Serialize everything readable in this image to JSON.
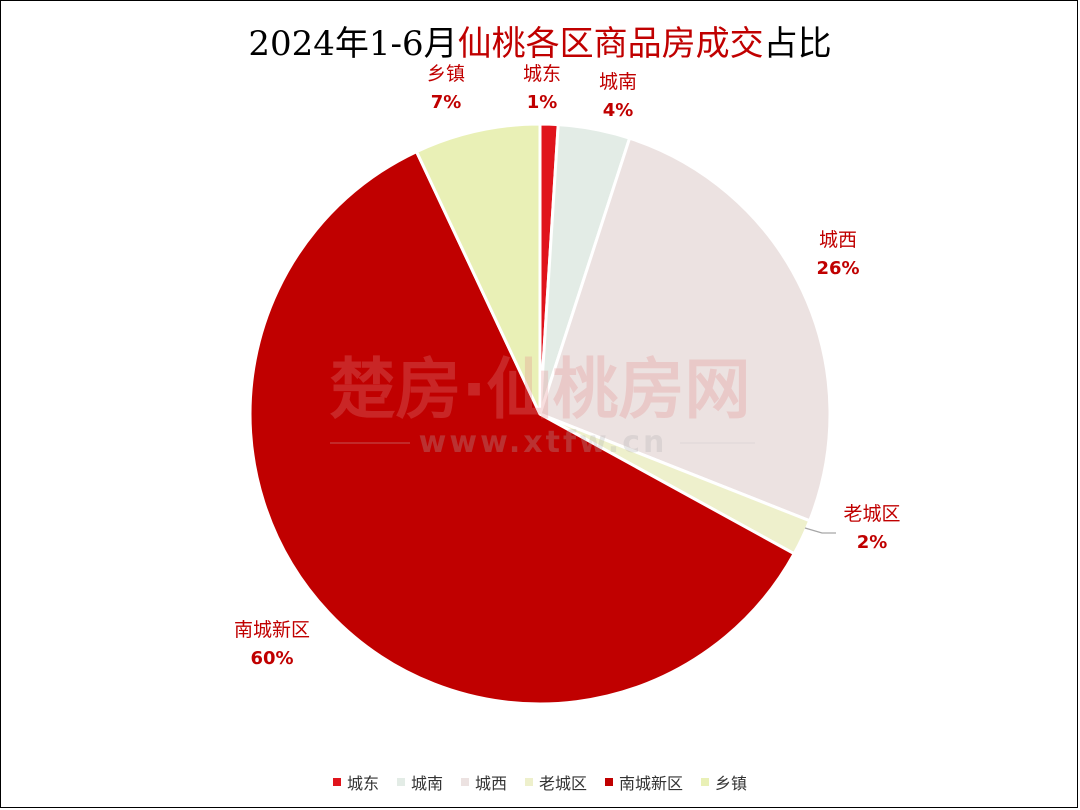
{
  "title": {
    "prefix": "2024年1-6月",
    "highlight": "仙桃各区商品房成交",
    "suffix": "占比"
  },
  "watermark": {
    "main": "楚房·仙桃房网",
    "url": "www.xtfw.cn"
  },
  "colors": {
    "label": "#c00000",
    "title_highlight": "#c00000"
  },
  "chart_data": {
    "type": "pie",
    "title": "2024年1-6月仙桃各区商品房成交占比",
    "legend_position": "bottom",
    "slices": [
      {
        "name": "城东",
        "value": 1,
        "label": "1%",
        "color": "#e0141c"
      },
      {
        "name": "城南",
        "value": 4,
        "label": "4%",
        "color": "#e3ece6"
      },
      {
        "name": "城西",
        "value": 26,
        "label": "26%",
        "color": "#ece2e1"
      },
      {
        "name": "老城区",
        "value": 2,
        "label": "2%",
        "color": "#eef0cc"
      },
      {
        "name": "南城新区",
        "value": 60,
        "label": "60%",
        "color": "#c00000"
      },
      {
        "name": "乡镇",
        "value": 7,
        "label": "7%",
        "color": "#e9f0b6"
      }
    ]
  }
}
